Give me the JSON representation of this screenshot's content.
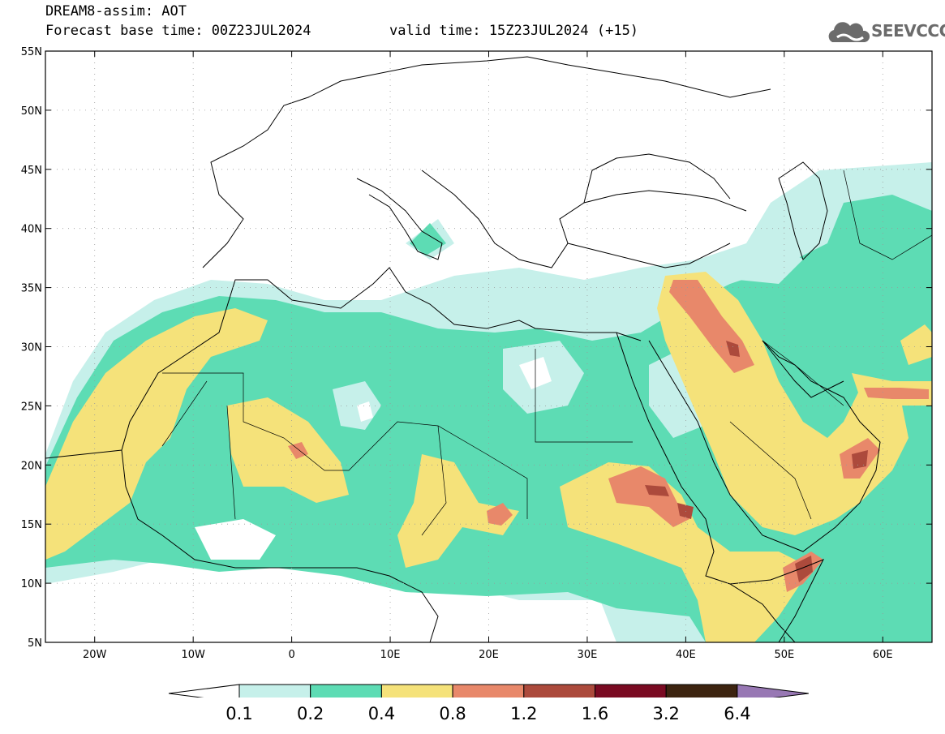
{
  "header": {
    "line1": "DREAM8-assim: AOT",
    "line2_left": "Forecast base time: 00Z23JUL2024",
    "line2_right": "valid time: 15Z23JUL2024 (+15)"
  },
  "logo": {
    "text": "SEEVCCC",
    "icon": "cloud-logo-icon"
  },
  "map": {
    "lon_ticks": [
      "20W",
      "10W",
      "0",
      "10E",
      "20E",
      "30E",
      "40E",
      "50E",
      "60E"
    ],
    "lat_ticks": [
      "55N",
      "50N",
      "45N",
      "40N",
      "35N",
      "30N",
      "25N",
      "20N",
      "15N",
      "10N",
      "5N"
    ],
    "lon_range": [
      -25,
      65
    ],
    "lat_range": [
      5,
      55
    ],
    "grid": "dotted"
  },
  "colorbar": {
    "labels": [
      "0.1",
      "0.2",
      "0.4",
      "0.8",
      "1.2",
      "1.6",
      "3.2",
      "6.4"
    ],
    "colors": [
      "#c6f0ea",
      "#5ddcb4",
      "#f5e27a",
      "#e8886a",
      "#ac4a3c",
      "#7a0a22",
      "#3d2410",
      "#9878b4"
    ],
    "below_color": "#ffffff"
  }
}
